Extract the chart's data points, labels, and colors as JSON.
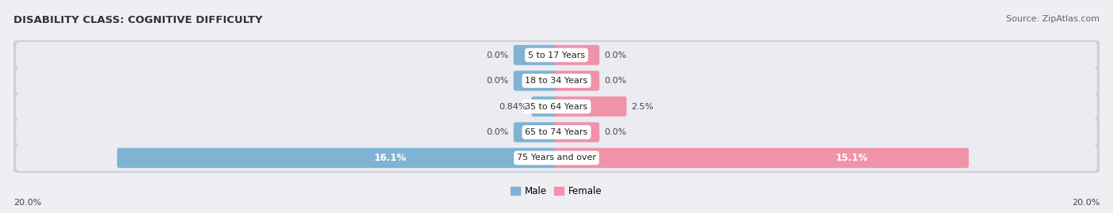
{
  "title": "DISABILITY CLASS: COGNITIVE DIFFICULTY",
  "source": "Source: ZipAtlas.com",
  "categories": [
    "5 to 17 Years",
    "18 to 34 Years",
    "35 to 64 Years",
    "65 to 74 Years",
    "75 Years and over"
  ],
  "male_values": [
    0.0,
    0.0,
    0.84,
    0.0,
    16.1
  ],
  "female_values": [
    0.0,
    0.0,
    2.5,
    0.0,
    15.1
  ],
  "male_labels": [
    "0.0%",
    "0.0%",
    "0.84%",
    "0.0%",
    "16.1%"
  ],
  "female_labels": [
    "0.0%",
    "0.0%",
    "2.5%",
    "0.0%",
    "15.1%"
  ],
  "male_color": "#7fb3d3",
  "female_color": "#f093a8",
  "male_color_dark": "#5a9abf",
  "female_color_dark": "#e8607a",
  "axis_max": 20.0,
  "axis_label_left": "20.0%",
  "axis_label_right": "20.0%",
  "background_color": "#eeeef3",
  "row_bg_color": "#e2e2ea",
  "row_border_color": "#d0d0dc",
  "title_fontsize": 9.5,
  "source_fontsize": 8,
  "label_fontsize": 8,
  "category_fontsize": 8,
  "min_bar_width": 1.5,
  "legend_label_male": "Male",
  "legend_label_female": "Female"
}
